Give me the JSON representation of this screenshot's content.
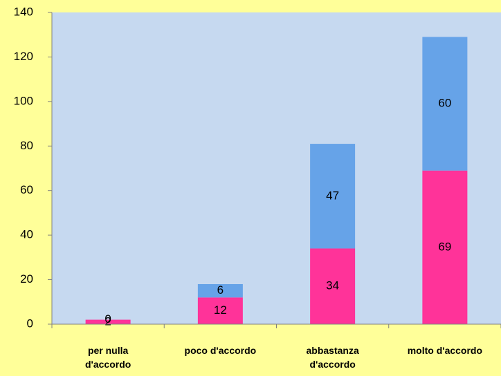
{
  "chart_data": {
    "type": "bar",
    "stacked": true,
    "categories": [
      "per nulla d'accordo",
      "poco d'accordo",
      "abbastanza d'accordo",
      "molto d'accordo"
    ],
    "series": [
      {
        "color": "#ff3399",
        "values": [
          2,
          12,
          34,
          69
        ]
      },
      {
        "color": "#66a3e8",
        "values": [
          0,
          6,
          47,
          60
        ]
      }
    ],
    "ylim": [
      0,
      140
    ],
    "yticks": [
      0,
      20,
      40,
      60,
      80,
      100,
      120,
      140
    ]
  }
}
